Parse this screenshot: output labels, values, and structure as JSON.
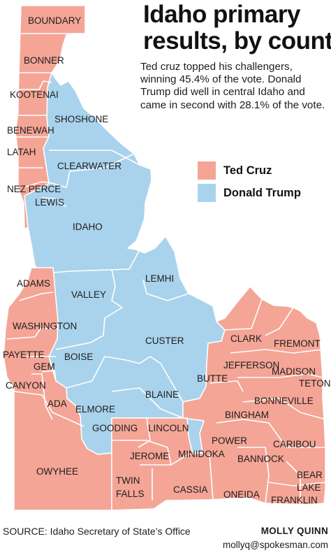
{
  "header": {
    "title_line1": "Idaho primary",
    "title_line2": "results, by county",
    "subtitle": "Ted cruz topped his challengers, winning 45.4% of the vote. Donald Trump did well in central Idaho and came in second with 28.1% of the vote."
  },
  "legend": [
    {
      "label": "Ted Cruz",
      "color": "#f4a596"
    },
    {
      "label": "Donald Trump",
      "color": "#a9d3ec"
    }
  ],
  "colors": {
    "cruz": "#f4a596",
    "trump": "#a9d3ec",
    "border": "#ffffff"
  },
  "counties": {
    "boundary": {
      "label": "BOUNDARY",
      "winner": "Ted Cruz"
    },
    "bonner": {
      "label": "BONNER",
      "winner": "Ted Cruz"
    },
    "kootenai": {
      "label": "KOOTENAI",
      "winner": "Ted Cruz"
    },
    "shoshone": {
      "label": "SHOSHONE",
      "winner": "Donald Trump"
    },
    "benewah": {
      "label": "BENEWAH",
      "winner": "Ted Cruz"
    },
    "latah": {
      "label": "LATAH",
      "winner": "Ted Cruz"
    },
    "clearwater": {
      "label": "CLEARWATER",
      "winner": "Donald Trump"
    },
    "nezperce": {
      "label": "NEZ PERCE",
      "winner": "Ted Cruz"
    },
    "lewis": {
      "label": "LEWIS",
      "winner": "Donald Trump"
    },
    "idaho": {
      "label": "IDAHO",
      "winner": "Donald Trump"
    },
    "adams": {
      "label": "ADAMS",
      "winner": "Ted Cruz"
    },
    "valley": {
      "label": "VALLEY",
      "winner": "Donald Trump"
    },
    "lemhi": {
      "label": "LEMHI",
      "winner": "Donald Trump"
    },
    "washington": {
      "label": "WASHINGTON",
      "winner": "Ted Cruz"
    },
    "custer": {
      "label": "CUSTER",
      "winner": "Donald Trump"
    },
    "clark": {
      "label": "CLARK",
      "winner": "Ted Cruz"
    },
    "fremont": {
      "label": "FREMONT",
      "winner": "Ted Cruz"
    },
    "payette": {
      "label": "PAYETTE",
      "winner": "Ted Cruz"
    },
    "boise": {
      "label": "BOISE",
      "winner": "Donald Trump"
    },
    "gem": {
      "label": "GEM",
      "winner": "Ted Cruz"
    },
    "jefferson": {
      "label": "JEFFERSON",
      "winner": "Ted Cruz"
    },
    "madison": {
      "label": "MADISON",
      "winner": "Ted Cruz"
    },
    "teton": {
      "label": "TETON",
      "winner": "Ted Cruz"
    },
    "butte": {
      "label": "BUTTE",
      "winner": "Ted Cruz"
    },
    "canyon": {
      "label": "CANYON",
      "winner": "Ted Cruz"
    },
    "blaine": {
      "label": "BLAINE",
      "winner": "Donald Trump"
    },
    "ada": {
      "label": "ADA",
      "winner": "Ted Cruz"
    },
    "elmore": {
      "label": "ELMORE",
      "winner": "Donald Trump"
    },
    "bonneville": {
      "label": "BONNEVILLE",
      "winner": "Ted Cruz"
    },
    "bingham": {
      "label": "BINGHAM",
      "winner": "Ted Cruz"
    },
    "gooding": {
      "label": "GOODING",
      "winner": "Donald Trump"
    },
    "lincoln": {
      "label": "LINCOLN",
      "winner": "Ted Cruz"
    },
    "power": {
      "label": "POWER",
      "winner": "Ted Cruz"
    },
    "caribou": {
      "label": "CARIBOU",
      "winner": "Ted Cruz"
    },
    "jerome": {
      "label": "JEROME",
      "winner": "Ted Cruz"
    },
    "minidoka": {
      "label": "MINIDOKA",
      "winner": "Donald Trump"
    },
    "bannock": {
      "label": "BANNOCK",
      "winner": "Ted Cruz"
    },
    "owyhee": {
      "label": "OWYHEE",
      "winner": "Ted Cruz"
    },
    "bearlake": {
      "label_line1": "BEAR",
      "label_line2": "LAKE",
      "winner": "Ted Cruz"
    },
    "twinfalls": {
      "label_line1": "TWIN",
      "label_line2": "FALLS",
      "winner": "Ted Cruz"
    },
    "cassia": {
      "label": "CASSIA",
      "winner": "Ted Cruz"
    },
    "oneida": {
      "label": "ONEIDA",
      "winner": "Ted Cruz"
    },
    "franklin": {
      "label": "FRANKLIN",
      "winner": "Ted Cruz"
    }
  },
  "footer": {
    "source": "SOURCE: Idaho Secretary of State’s Office",
    "credit_name": "MOLLY QUINN",
    "credit_email": "mollyq@spokesman.com"
  }
}
